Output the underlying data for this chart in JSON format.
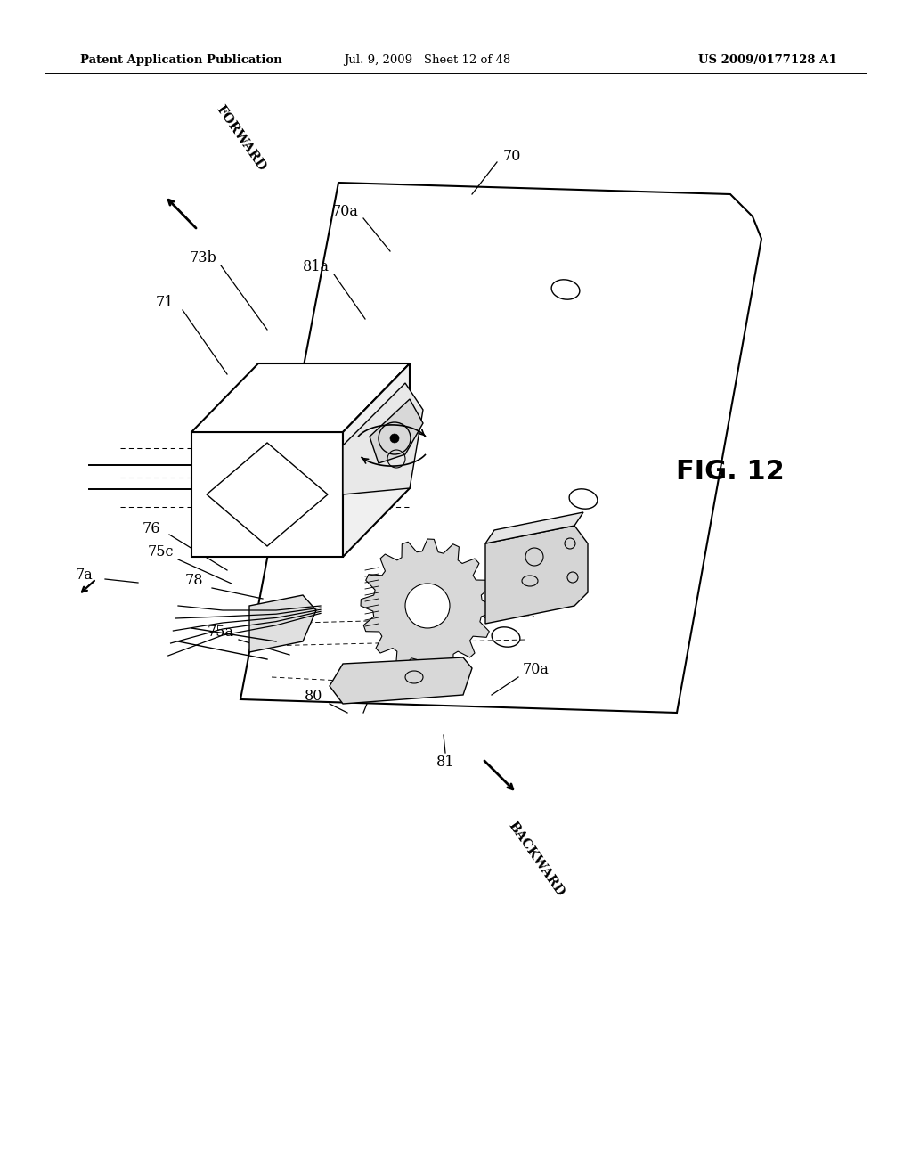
{
  "bg_color": "#ffffff",
  "header_left": "Patent Application Publication",
  "header_mid": "Jul. 9, 2009   Sheet 12 of 48",
  "header_right": "US 2009/0177128 A1",
  "fig_label": "FIG. 12"
}
